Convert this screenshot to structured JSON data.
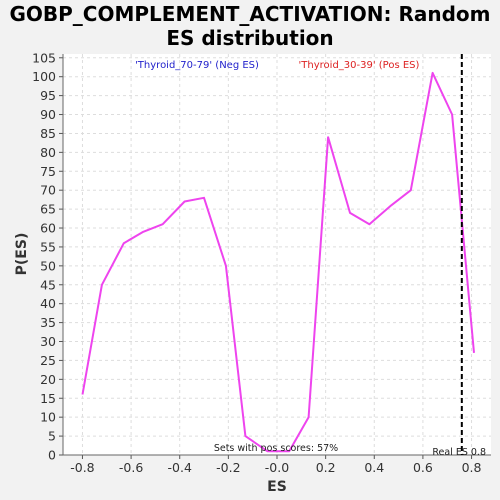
{
  "title_line1": "GOBP_COMPLEMENT_ACTIVATION: Random",
  "title_line2": "ES distribution",
  "colors": {
    "series": "#ee44ee",
    "neg": "#2222cc",
    "pos": "#dd2222",
    "grid": "#dddddd",
    "marker": "#000000",
    "plot_bg": "#ffffff"
  },
  "chart_data": {
    "type": "line",
    "title": "GOBP_COMPLEMENT_ACTIVATION: Random ES distribution",
    "xlabel": "ES",
    "ylabel": "P(ES)",
    "xlim": [
      -0.88,
      0.88
    ],
    "ylim": [
      0,
      106
    ],
    "x_ticks": [
      -0.8,
      -0.6,
      -0.4,
      -0.2,
      0.0,
      0.2,
      0.4,
      0.6,
      0.8
    ],
    "x_tick_labels": [
      "-0.8",
      "-0.6",
      "-0.4",
      "-0.2",
      "-0.0",
      "0.2",
      "0.4",
      "0.6",
      "0.8"
    ],
    "y_ticks": [
      0,
      5,
      10,
      15,
      20,
      25,
      30,
      35,
      40,
      45,
      50,
      55,
      60,
      65,
      70,
      75,
      80,
      85,
      90,
      95,
      100,
      105
    ],
    "grid": true,
    "series": [
      {
        "x": [
          -0.8,
          -0.72,
          -0.63,
          -0.55,
          -0.47,
          -0.38,
          -0.3,
          -0.21,
          -0.13,
          -0.04,
          0.05,
          0.13,
          0.21,
          0.3,
          0.38,
          0.47,
          0.55,
          0.64,
          0.72,
          0.81
        ],
        "values": [
          16,
          45,
          56,
          59,
          61,
          67,
          68,
          50,
          5,
          1,
          1,
          10,
          84,
          64,
          61,
          66,
          70,
          101,
          90,
          27
        ]
      }
    ],
    "legend": {
      "neg": "'Thyroid_70-79' (Neg ES)",
      "pos": "'Thyroid_30-39' (Pos ES)"
    },
    "real_es": 0.76,
    "real_es_label": "Real ES 0.8",
    "pos_scores_label": "Sets with pos scores: 57%"
  }
}
